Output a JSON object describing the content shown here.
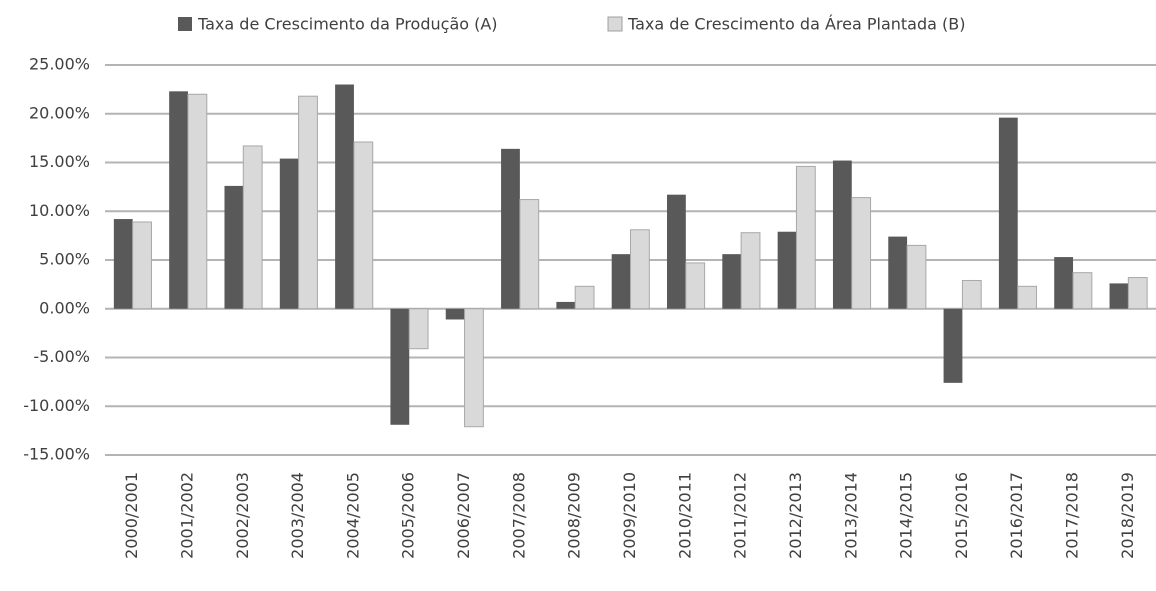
{
  "chart_data": {
    "type": "bar",
    "categories": [
      "2000/2001",
      "2001/2002",
      "2002/2003",
      "2003/2004",
      "2004/2005",
      "2005/2006",
      "2006/2007",
      "2007/2008",
      "2008/2009",
      "2009/2010",
      "2010/2011",
      "2011/2012",
      "2012/2013",
      "2013/2014",
      "2014/2015",
      "2015/2016",
      "2016/2017",
      "2017/2018",
      "2018/2019"
    ],
    "series": [
      {
        "name": "Taxa de Crescimento da Produção (A)",
        "color": "#595959",
        "values": [
          9.2,
          22.3,
          12.6,
          15.4,
          23.0,
          -11.9,
          -1.1,
          16.4,
          0.7,
          5.6,
          11.7,
          5.6,
          7.9,
          15.2,
          7.4,
          -7.6,
          19.6,
          5.3,
          2.6
        ]
      },
      {
        "name": "Taxa de Crescimento da Área Plantada (B)",
        "color": "#d9d9d9",
        "values": [
          8.9,
          22.0,
          16.7,
          21.8,
          17.1,
          -4.1,
          -12.1,
          11.2,
          2.3,
          8.1,
          4.7,
          7.8,
          14.6,
          11.4,
          6.5,
          2.9,
          2.3,
          3.7,
          3.2
        ]
      }
    ],
    "ylim": [
      -15,
      25
    ],
    "yticks": [
      {
        "value": -15,
        "label": "-15.00%"
      },
      {
        "value": -10,
        "label": "-10.00%"
      },
      {
        "value": -5,
        "label": "-5.00%"
      },
      {
        "value": 0,
        "label": "0.00%"
      },
      {
        "value": 5,
        "label": "5.00%"
      },
      {
        "value": 10,
        "label": "10.00%"
      },
      {
        "value": 15,
        "label": "15.00%"
      },
      {
        "value": 20,
        "label": "20.00%"
      },
      {
        "value": 25,
        "label": "25.00%"
      }
    ],
    "grid": true,
    "legend": "top"
  }
}
